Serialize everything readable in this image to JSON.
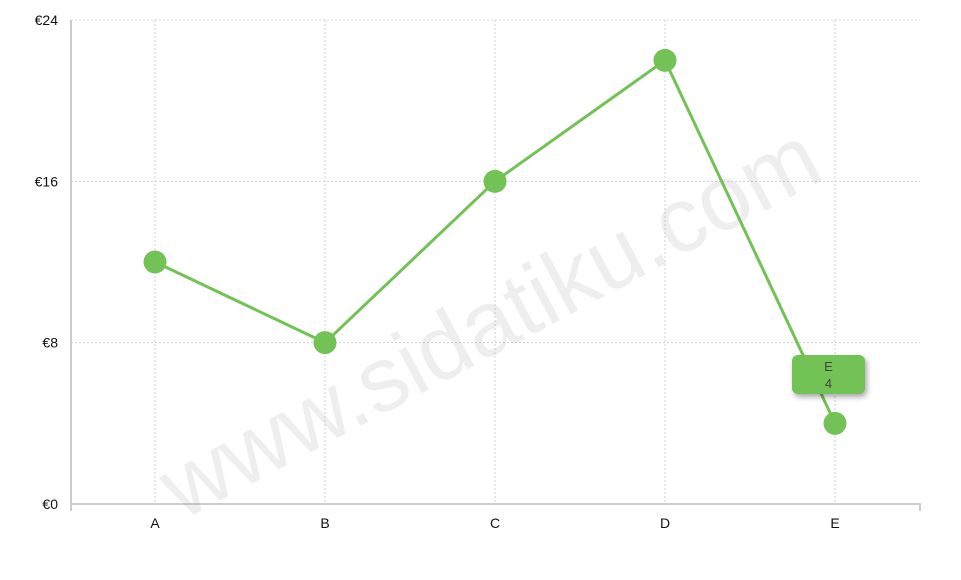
{
  "chart_data": {
    "type": "line",
    "title": "",
    "xlabel": "",
    "ylabel": "",
    "categories": [
      "A",
      "B",
      "C",
      "D",
      "E"
    ],
    "series": [
      {
        "values": [
          12,
          8,
          16,
          22,
          4
        ]
      }
    ],
    "ylim": [
      0,
      24
    ],
    "yticks": [
      0,
      8,
      16,
      24
    ],
    "ytick_labels": [
      "€0",
      "€8",
      "€16",
      "€24"
    ],
    "grid": true,
    "line_color": "#72c255",
    "tooltip": {
      "category": "E",
      "value": "4",
      "color": "#72c255"
    }
  },
  "watermark": "www.sidatiku.com"
}
